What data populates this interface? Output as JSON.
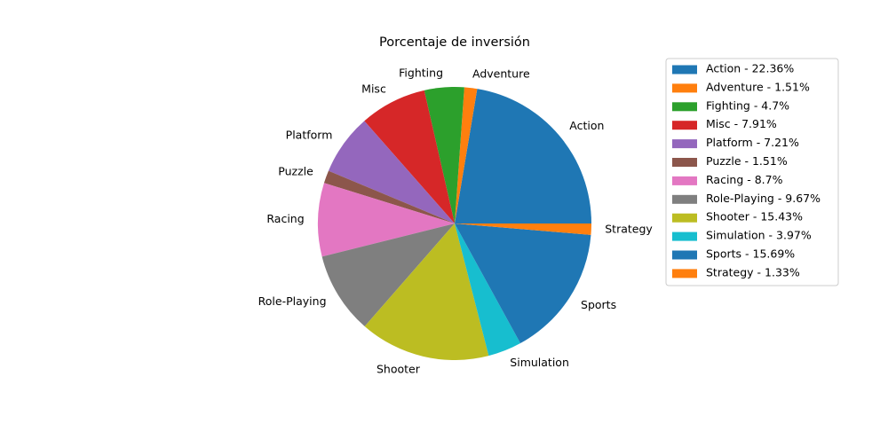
{
  "chart_data": {
    "type": "pie",
    "title": "Porcentaje de inversión",
    "categories": [
      "Action",
      "Adventure",
      "Fighting",
      "Misc",
      "Platform",
      "Puzzle",
      "Racing",
      "Role-Playing",
      "Shooter",
      "Simulation",
      "Sports",
      "Strategy"
    ],
    "values": [
      22.36,
      1.51,
      4.7,
      7.91,
      7.21,
      1.51,
      8.7,
      9.67,
      15.43,
      3.97,
      15.69,
      1.33
    ],
    "colors": [
      "#1f77b4",
      "#ff7f0e",
      "#2ca02c",
      "#d62728",
      "#9467bd",
      "#8c564b",
      "#e377c2",
      "#7f7f7f",
      "#bcbd22",
      "#17becf",
      "#1f77b4",
      "#ff7f0e"
    ],
    "legend": {
      "placement": "right",
      "entries": [
        "Action - 22.36%",
        "Adventure - 1.51%",
        "Fighting - 4.7%",
        "Misc - 7.91%",
        "Platform - 7.21%",
        "Puzzle - 1.51%",
        "Racing - 8.7%",
        "Role-Playing - 9.67%",
        "Shooter - 15.43%",
        "Simulation - 3.97%",
        "Sports - 15.69%",
        "Strategy - 1.33%"
      ]
    },
    "start_angle": "0deg (3 o'clock), counterclockwise"
  }
}
